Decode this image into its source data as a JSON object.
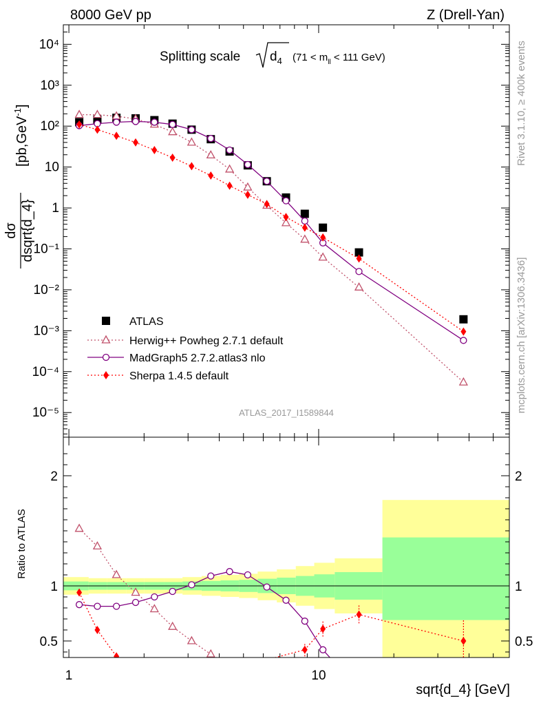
{
  "header": {
    "left": "8000 GeV pp",
    "right": "Z (Drell-Yan)"
  },
  "side": {
    "rivet": "Rivet 3.1.10, ≥ 400k events",
    "mcplots": "mcplots.cern.ch [arXiv:1306.3436]"
  },
  "watermark": "ATLAS_2017_I1589844",
  "chart_data": [
    {
      "type": "scatter",
      "title_main": "Splitting scale",
      "title_sub": "d",
      "title_sub_index": "4",
      "title_range": "(71 < m",
      "title_range_sub": "ll",
      "title_range_end": " < 111 GeV)",
      "ylabel_num": "dσ",
      "ylabel_den": "dsqrt{d_4}",
      "ylabel_units": "[pb,GeV",
      "ylabel_units_exp": "-1",
      "ylabel_units_end": "]",
      "xscale": "log",
      "yscale": "log",
      "xlim": [
        0.95,
        58
      ],
      "ylim": [
        2.5e-06,
        30000
      ],
      "ytick_labels": [
        "10⁻⁵",
        "10⁻⁴",
        "10⁻³",
        "10⁻²",
        "10⁻¹",
        "1",
        "10",
        "10²",
        "10³",
        "10⁴"
      ],
      "legend_position": "lower-left",
      "series": [
        {
          "name": "ATLAS",
          "color": "#000000",
          "marker": "square",
          "x": [
            1.1,
            1.3,
            1.55,
            1.85,
            2.2,
            2.6,
            3.1,
            3.7,
            4.4,
            5.2,
            6.2,
            7.4,
            8.8,
            10.4,
            14.5,
            38
          ],
          "y": [
            125,
            145,
            160,
            155,
            140,
            115,
            82,
            48,
            24,
            11,
            4.5,
            1.8,
            0.72,
            0.33,
            0.082,
            0.0019
          ]
        },
        {
          "name": "Herwig++ Powheg 2.7.1 default",
          "color": "#c0506a",
          "marker": "triangle-open",
          "line": "dotted",
          "x": [
            1.1,
            1.3,
            1.55,
            1.85,
            2.2,
            2.6,
            3.1,
            3.7,
            4.4,
            5.2,
            6.2,
            7.4,
            8.8,
            10.4,
            14.5,
            38
          ],
          "y": [
            190,
            190,
            175,
            150,
            110,
            72,
            40,
            19.5,
            8.8,
            3.2,
            1.15,
            0.43,
            0.17,
            0.062,
            0.0115,
            5.5e-05
          ]
        },
        {
          "name": "MadGraph5 2.7.2.atlas3 nlo",
          "color": "#800080",
          "marker": "circle-open",
          "line": "solid",
          "x": [
            1.1,
            1.3,
            1.55,
            1.85,
            2.2,
            2.6,
            3.1,
            3.7,
            4.4,
            5.2,
            6.2,
            7.4,
            8.8,
            10.4,
            14.5,
            38
          ],
          "y": [
            103,
            115,
            125,
            130,
            125,
            110,
            82,
            50,
            26,
            11.5,
            4.5,
            1.5,
            0.48,
            0.14,
            0.028,
            0.00058
          ]
        },
        {
          "name": "Sherpa 1.4.5 default",
          "color": "#ff0000",
          "marker": "diamond",
          "line": "dotted",
          "x": [
            1.1,
            1.3,
            1.55,
            1.85,
            2.2,
            2.6,
            3.1,
            3.7,
            4.4,
            5.2,
            6.2,
            7.4,
            8.8,
            10.4,
            14.5,
            38
          ],
          "y": [
            110,
            82,
            58,
            40,
            26,
            17,
            10.5,
            6.2,
            3.5,
            2.1,
            1.25,
            0.6,
            0.33,
            0.19,
            0.058,
            0.00095
          ]
        }
      ]
    },
    {
      "type": "line",
      "xlabel": "sqrt{d_4} [GeV]",
      "ylabel": "Ratio to ATLAS",
      "xscale": "log",
      "xlim": [
        0.95,
        58
      ],
      "ylim": [
        0.35,
        2.35
      ],
      "xtick_labels": [
        "1",
        "10"
      ],
      "ytick_labels": [
        "0.5",
        "1",
        "2"
      ],
      "bands": {
        "edges": [
          0.95,
          1.2,
          1.42,
          1.7,
          2.0,
          2.4,
          2.85,
          3.4,
          4.05,
          4.8,
          5.7,
          6.8,
          8.1,
          9.6,
          11.6,
          18,
          58
        ],
        "outer_low": [
          0.92,
          0.93,
          0.93,
          0.93,
          0.93,
          0.93,
          0.92,
          0.91,
          0.9,
          0.89,
          0.87,
          0.85,
          0.82,
          0.79,
          0.75,
          0.35
        ],
        "outer_high": [
          1.08,
          1.07,
          1.07,
          1.07,
          1.07,
          1.07,
          1.08,
          1.09,
          1.1,
          1.11,
          1.13,
          1.15,
          1.18,
          1.21,
          1.25,
          1.78
        ],
        "inner_low": [
          0.96,
          0.965,
          0.965,
          0.965,
          0.965,
          0.965,
          0.96,
          0.955,
          0.95,
          0.945,
          0.935,
          0.925,
          0.91,
          0.895,
          0.875,
          0.69
        ],
        "inner_high": [
          1.04,
          1.035,
          1.035,
          1.035,
          1.035,
          1.035,
          1.04,
          1.045,
          1.05,
          1.055,
          1.065,
          1.075,
          1.09,
          1.105,
          1.125,
          1.44
        ],
        "outer_color": "#ffff99",
        "inner_color": "#99ff99"
      },
      "series": [
        {
          "name": "Herwig++ Powheg 2.7.1 default",
          "color": "#c0506a",
          "x": [
            1.1,
            1.3,
            1.55,
            1.85,
            2.2,
            2.6,
            3.1,
            3.7
          ],
          "y": [
            1.52,
            1.36,
            1.1,
            0.94,
            0.79,
            0.63,
            0.5,
            0.38
          ]
        },
        {
          "name": "MadGraph5 2.7.2.atlas3 nlo",
          "color": "#800080",
          "x": [
            1.1,
            1.3,
            1.55,
            1.85,
            2.2,
            2.6,
            3.1,
            3.7,
            4.4,
            5.2,
            6.2,
            7.4,
            8.8,
            10.4
          ],
          "y": [
            0.83,
            0.815,
            0.815,
            0.85,
            0.9,
            0.95,
            1.01,
            1.09,
            1.13,
            1.1,
            0.99,
            0.87,
            0.68,
            0.42
          ]
        },
        {
          "name": "Sherpa 1.4.5 default",
          "color": "#ff0000",
          "x": [
            1.1,
            1.3,
            1.55,
            8.8,
            10.4,
            14.5,
            38
          ],
          "y": [
            0.94,
            0.6,
            0.36,
            0.42,
            0.61,
            0.74,
            0.5
          ]
        }
      ]
    }
  ]
}
